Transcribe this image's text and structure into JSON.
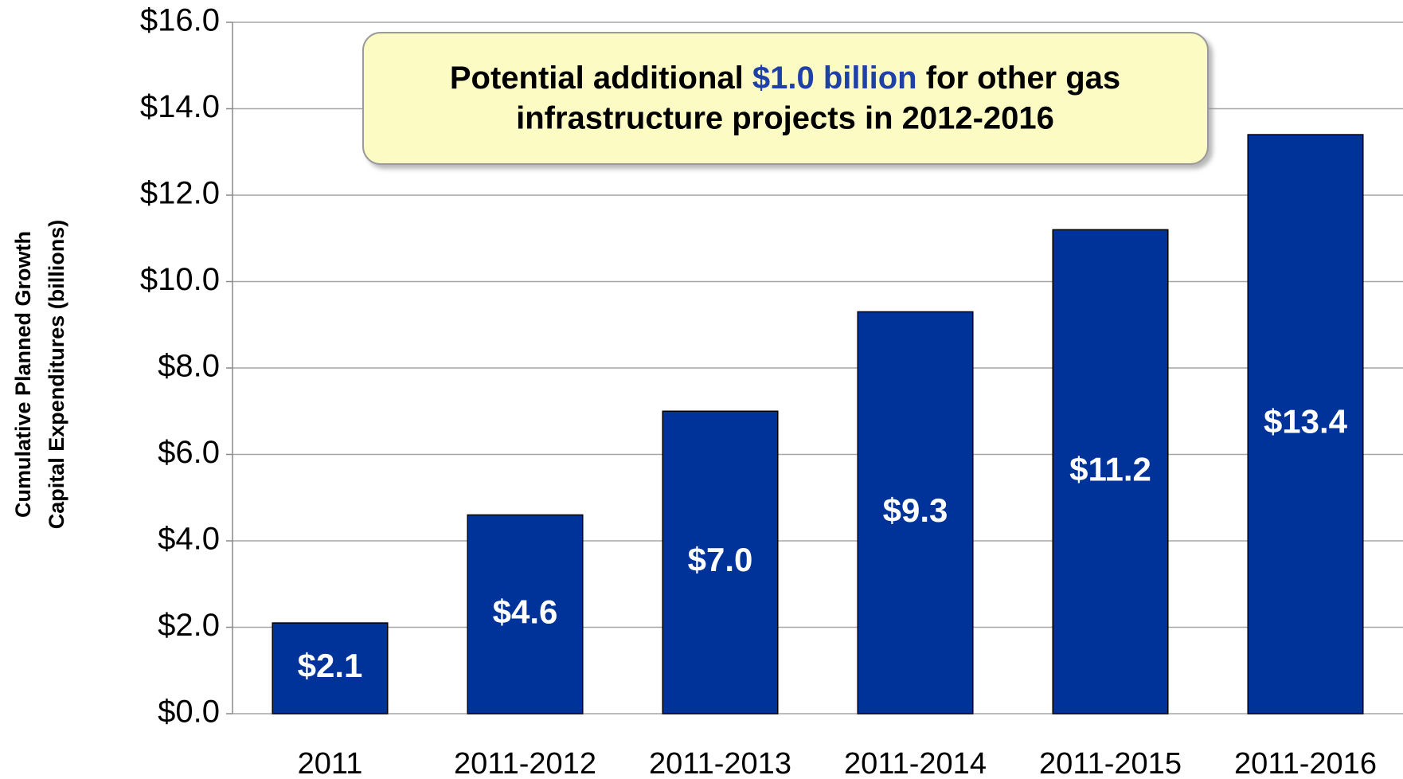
{
  "chart_data": {
    "type": "bar",
    "ylabel": [
      "Cumulative Planned Growth",
      "Capital Expenditures (billions)"
    ],
    "annotation": {
      "line1": [
        "Potential additional ",
        "$1.0 billion",
        " for other gas"
      ],
      "line2": "infrastructure projects in 2012-2016"
    },
    "categories": [
      "2011",
      "2011-2012",
      "2011-2013",
      "2011-2014",
      "2011-2015",
      "2011-2016"
    ],
    "values": [
      2.1,
      4.6,
      7.0,
      9.3,
      11.2,
      13.4
    ],
    "value_labels": [
      "$2.1",
      "$4.6",
      "$7.0",
      "$9.3",
      "$11.2",
      "$13.4"
    ],
    "color": "#003399",
    "ylim": [
      0,
      16
    ],
    "yticks": [
      {
        "value": 0,
        "label": "$0.0"
      },
      {
        "value": 2,
        "label": "$2.0"
      },
      {
        "value": 4,
        "label": "$4.0"
      },
      {
        "value": 6,
        "label": "$6.0"
      },
      {
        "value": 8,
        "label": "$8.0"
      },
      {
        "value": 10,
        "label": "$10.0"
      },
      {
        "value": 12,
        "label": "$12.0"
      },
      {
        "value": 14,
        "label": "$14.0"
      },
      {
        "value": 16,
        "label": "$16.0"
      }
    ],
    "grid": true
  }
}
